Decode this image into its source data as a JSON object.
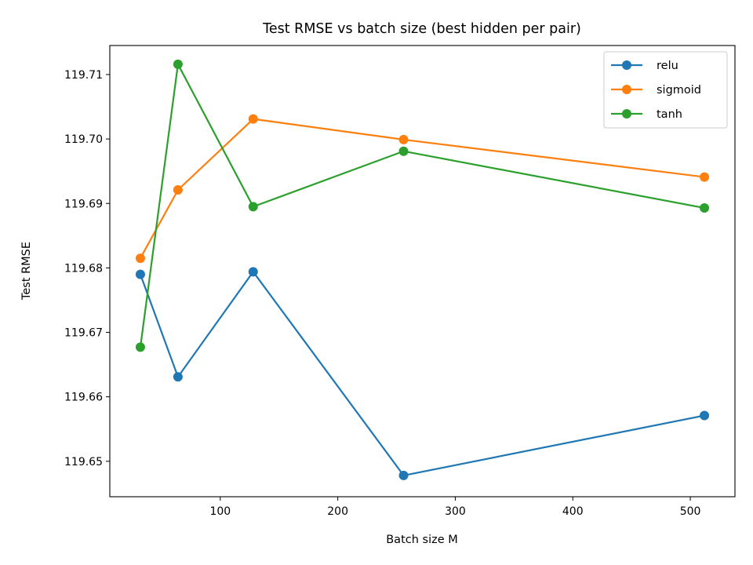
{
  "chart_data": {
    "type": "line",
    "title": "Test RMSE vs batch size (best hidden per pair)",
    "xlabel": "Batch size M",
    "ylabel": "Test RMSE",
    "xlim": [
      6,
      538
    ],
    "ylim": [
      119.6445,
      119.7145
    ],
    "xticks": [
      100,
      200,
      300,
      400,
      500
    ],
    "xtick_labels": [
      "100",
      "200",
      "300",
      "400",
      "500"
    ],
    "yticks": [
      119.65,
      119.66,
      119.67,
      119.68,
      119.69,
      119.7,
      119.71
    ],
    "ytick_labels": [
      "119.65",
      "119.66",
      "119.67",
      "119.68",
      "119.69",
      "119.70",
      "119.71"
    ],
    "x": [
      32,
      64,
      128,
      256,
      512
    ],
    "series": [
      {
        "name": "relu",
        "color": "#1f77b4",
        "values": [
          119.679,
          119.6631,
          119.6794,
          119.6478,
          119.6571
        ]
      },
      {
        "name": "sigmoid",
        "color": "#ff7f0e",
        "values": [
          119.6815,
          119.6921,
          119.7031,
          119.6999,
          119.6941
        ]
      },
      {
        "name": "tanh",
        "color": "#2ca02c",
        "values": [
          119.6677,
          119.7116,
          119.6895,
          119.6981,
          119.6893
        ]
      }
    ],
    "grid": false,
    "legend_position": "top-right"
  }
}
